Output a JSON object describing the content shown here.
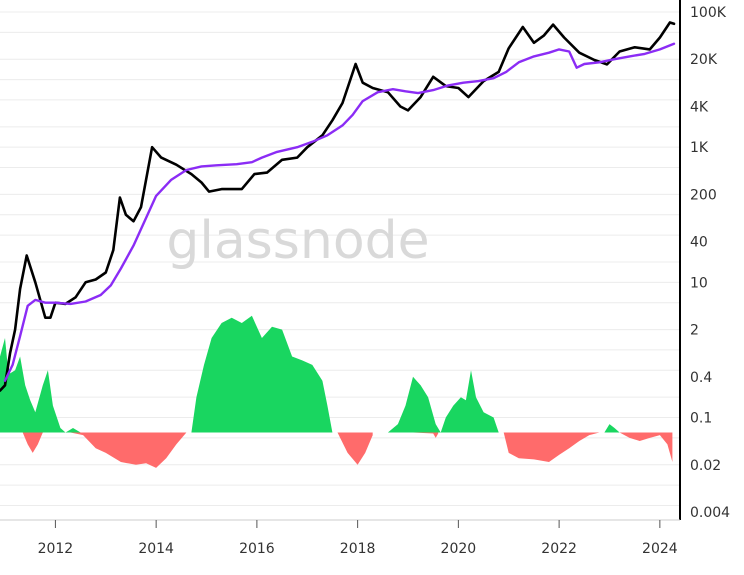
{
  "watermark": "glassnode",
  "chart_data": {
    "type": "line",
    "title": "",
    "xlabel": "",
    "ylabel": "",
    "x_ticks": [
      "2012",
      "2014",
      "2016",
      "2018",
      "2020",
      "2022",
      "2024"
    ],
    "y_ticks": [
      "100K",
      "20K",
      "4K",
      "1K",
      "200",
      "40",
      "10",
      "2",
      "0.4",
      "0.1",
      "0.02",
      "0.004"
    ],
    "y_scale": "log",
    "ylim": [
      0.004,
      100000
    ],
    "xlim": [
      2010.9,
      2024.4
    ],
    "grid": "horizontal",
    "legend": "none",
    "series": [
      {
        "key": "price",
        "color": "#000000",
        "points": [
          [
            2010.9,
            0.25
          ],
          [
            2011.0,
            0.3
          ],
          [
            2011.1,
            0.9
          ],
          [
            2011.2,
            2.0
          ],
          [
            2011.3,
            8.0
          ],
          [
            2011.43,
            25
          ],
          [
            2011.6,
            10
          ],
          [
            2011.8,
            3.0
          ],
          [
            2011.9,
            3.0
          ],
          [
            2012.0,
            5.0
          ],
          [
            2012.2,
            4.8
          ],
          [
            2012.4,
            6.0
          ],
          [
            2012.6,
            10
          ],
          [
            2012.8,
            11
          ],
          [
            2013.0,
            14
          ],
          [
            2013.15,
            30
          ],
          [
            2013.28,
            180
          ],
          [
            2013.4,
            100
          ],
          [
            2013.55,
            80
          ],
          [
            2013.7,
            130
          ],
          [
            2013.92,
            1000
          ],
          [
            2014.1,
            700
          ],
          [
            2014.4,
            550
          ],
          [
            2014.7,
            400
          ],
          [
            2014.9,
            300
          ],
          [
            2015.05,
            220
          ],
          [
            2015.3,
            240
          ],
          [
            2015.7,
            240
          ],
          [
            2015.95,
            400
          ],
          [
            2016.2,
            420
          ],
          [
            2016.5,
            650
          ],
          [
            2016.8,
            700
          ],
          [
            2017.0,
            1000
          ],
          [
            2017.3,
            1500
          ],
          [
            2017.5,
            2500
          ],
          [
            2017.7,
            4500
          ],
          [
            2017.96,
            17000
          ],
          [
            2018.1,
            9000
          ],
          [
            2018.3,
            7500
          ],
          [
            2018.6,
            6500
          ],
          [
            2018.85,
            4000
          ],
          [
            2019.0,
            3500
          ],
          [
            2019.25,
            5500
          ],
          [
            2019.5,
            11000
          ],
          [
            2019.75,
            8000
          ],
          [
            2020.0,
            7500
          ],
          [
            2020.2,
            5500
          ],
          [
            2020.5,
            9500
          ],
          [
            2020.8,
            13000
          ],
          [
            2021.0,
            29000
          ],
          [
            2021.28,
            60000
          ],
          [
            2021.5,
            35000
          ],
          [
            2021.7,
            45000
          ],
          [
            2021.88,
            65000
          ],
          [
            2022.1,
            42000
          ],
          [
            2022.4,
            25000
          ],
          [
            2022.7,
            19500
          ],
          [
            2022.95,
            16800
          ],
          [
            2023.2,
            26000
          ],
          [
            2023.5,
            30000
          ],
          [
            2023.8,
            28000
          ],
          [
            2024.0,
            42000
          ],
          [
            2024.2,
            70000
          ],
          [
            2024.28,
            67000
          ]
        ]
      },
      {
        "key": "moving_average",
        "color": "#8b2cf5",
        "points": [
          [
            2011.0,
            0.35
          ],
          [
            2011.15,
            0.6
          ],
          [
            2011.3,
            1.6
          ],
          [
            2011.45,
            4.5
          ],
          [
            2011.6,
            5.5
          ],
          [
            2011.8,
            5.0
          ],
          [
            2012.0,
            5.0
          ],
          [
            2012.3,
            4.8
          ],
          [
            2012.6,
            5.2
          ],
          [
            2012.9,
            6.5
          ],
          [
            2013.1,
            9.0
          ],
          [
            2013.3,
            16
          ],
          [
            2013.55,
            35
          ],
          [
            2013.8,
            90
          ],
          [
            2014.0,
            190
          ],
          [
            2014.3,
            330
          ],
          [
            2014.6,
            460
          ],
          [
            2014.9,
            520
          ],
          [
            2015.2,
            540
          ],
          [
            2015.6,
            560
          ],
          [
            2015.9,
            600
          ],
          [
            2016.1,
            700
          ],
          [
            2016.4,
            850
          ],
          [
            2016.8,
            1000
          ],
          [
            2017.1,
            1200
          ],
          [
            2017.4,
            1500
          ],
          [
            2017.7,
            2100
          ],
          [
            2017.9,
            3000
          ],
          [
            2018.1,
            4800
          ],
          [
            2018.4,
            6500
          ],
          [
            2018.7,
            7200
          ],
          [
            2018.95,
            6700
          ],
          [
            2019.2,
            6300
          ],
          [
            2019.5,
            7000
          ],
          [
            2019.8,
            8200
          ],
          [
            2020.1,
            9000
          ],
          [
            2020.4,
            9500
          ],
          [
            2020.7,
            10500
          ],
          [
            2020.95,
            13000
          ],
          [
            2021.2,
            18000
          ],
          [
            2021.5,
            22000
          ],
          [
            2021.8,
            25000
          ],
          [
            2022.0,
            28000
          ],
          [
            2022.2,
            26000
          ],
          [
            2022.35,
            15000
          ],
          [
            2022.5,
            17000
          ],
          [
            2022.8,
            18000
          ],
          [
            2023.1,
            20000
          ],
          [
            2023.4,
            22000
          ],
          [
            2023.7,
            24000
          ],
          [
            2024.0,
            28000
          ],
          [
            2024.28,
            34000
          ]
        ]
      },
      {
        "key": "oscillator_positive",
        "color": "#19d660",
        "points": [
          [
            2010.9,
            0.8
          ],
          [
            2011.0,
            1.5
          ],
          [
            2011.05,
            0.6
          ],
          [
            2011.1,
            0.45
          ],
          [
            2011.2,
            0.5
          ],
          [
            2011.3,
            0.8
          ],
          [
            2011.4,
            0.3
          ],
          [
            2011.5,
            0.18
          ],
          [
            2011.6,
            0.12
          ],
          [
            2011.75,
            0.3
          ],
          [
            2011.85,
            0.5
          ],
          [
            2011.95,
            0.15
          ],
          [
            2012.1,
            0.07
          ],
          [
            2012.2,
            0.06
          ],
          [
            2012.35,
            0.07
          ],
          [
            2012.5,
            0.06
          ],
          [
            2014.7,
            0.06
          ],
          [
            2014.8,
            0.2
          ],
          [
            2014.95,
            0.6
          ],
          [
            2015.1,
            1.5
          ],
          [
            2015.3,
            2.5
          ],
          [
            2015.5,
            3.0
          ],
          [
            2015.7,
            2.5
          ],
          [
            2015.9,
            3.2
          ],
          [
            2016.1,
            1.5
          ],
          [
            2016.3,
            2.2
          ],
          [
            2016.5,
            2.0
          ],
          [
            2016.7,
            0.8
          ],
          [
            2016.9,
            0.7
          ],
          [
            2017.1,
            0.6
          ],
          [
            2017.3,
            0.35
          ],
          [
            2017.4,
            0.15
          ],
          [
            2017.5,
            0.06
          ],
          [
            2018.6,
            0.06
          ],
          [
            2018.8,
            0.08
          ],
          [
            2018.95,
            0.15
          ],
          [
            2019.1,
            0.4
          ],
          [
            2019.25,
            0.3
          ],
          [
            2019.4,
            0.2
          ],
          [
            2019.55,
            0.08
          ],
          [
            2019.65,
            0.06
          ],
          [
            2019.75,
            0.1
          ],
          [
            2019.9,
            0.15
          ],
          [
            2020.05,
            0.2
          ],
          [
            2020.15,
            0.18
          ],
          [
            2020.25,
            0.5
          ],
          [
            2020.35,
            0.2
          ],
          [
            2020.5,
            0.12
          ],
          [
            2020.7,
            0.1
          ],
          [
            2020.8,
            0.06
          ],
          [
            2022.9,
            0.06
          ],
          [
            2023.0,
            0.08
          ],
          [
            2023.1,
            0.07
          ],
          [
            2023.2,
            0.06
          ]
        ]
      },
      {
        "key": "oscillator_negative",
        "color": "#ff6b6b",
        "points": [
          [
            2011.35,
            0.06
          ],
          [
            2011.45,
            0.04
          ],
          [
            2011.55,
            0.03
          ],
          [
            2011.65,
            0.04
          ],
          [
            2011.75,
            0.06
          ],
          [
            2012.3,
            0.06
          ],
          [
            2012.55,
            0.055
          ],
          [
            2012.8,
            0.035
          ],
          [
            2013.0,
            0.03
          ],
          [
            2013.3,
            0.022
          ],
          [
            2013.6,
            0.02
          ],
          [
            2013.8,
            0.021
          ],
          [
            2014.0,
            0.018
          ],
          [
            2014.2,
            0.025
          ],
          [
            2014.4,
            0.04
          ],
          [
            2014.6,
            0.06
          ],
          [
            2017.6,
            0.06
          ],
          [
            2017.8,
            0.03
          ],
          [
            2018.0,
            0.02
          ],
          [
            2018.15,
            0.03
          ],
          [
            2018.3,
            0.055
          ],
          [
            2019.1,
            0.06
          ],
          [
            2019.5,
            0.058
          ],
          [
            2019.55,
            0.05
          ],
          [
            2019.6,
            0.058
          ],
          [
            2020.9,
            0.06
          ],
          [
            2021.0,
            0.03
          ],
          [
            2021.2,
            0.025
          ],
          [
            2021.5,
            0.024
          ],
          [
            2021.8,
            0.022
          ],
          [
            2022.0,
            0.028
          ],
          [
            2022.2,
            0.035
          ],
          [
            2022.4,
            0.045
          ],
          [
            2022.6,
            0.055
          ],
          [
            2022.8,
            0.06
          ],
          [
            2023.2,
            0.06
          ],
          [
            2023.4,
            0.05
          ],
          [
            2023.6,
            0.045
          ],
          [
            2023.8,
            0.05
          ],
          [
            2024.0,
            0.055
          ],
          [
            2024.15,
            0.04
          ],
          [
            2024.25,
            0.022
          ]
        ]
      }
    ]
  }
}
